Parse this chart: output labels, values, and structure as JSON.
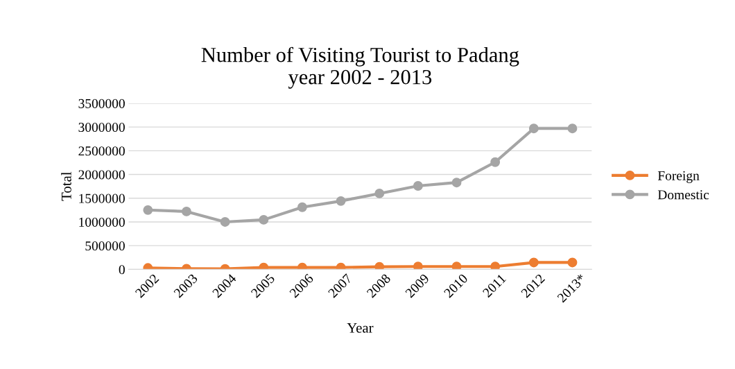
{
  "chart_data": {
    "type": "line",
    "title": "Number of Visiting Tourist to Padang\nyear 2002 - 2013",
    "xlabel": "Year",
    "ylabel": "Total",
    "categories": [
      "2002",
      "2003",
      "2004",
      "2005",
      "2006",
      "2007",
      "2008",
      "2009",
      "2010",
      "2011",
      "2012",
      "2013*"
    ],
    "series": [
      {
        "name": "Foreign",
        "color": "#ed7d31",
        "values": [
          30000,
          15000,
          10000,
          40000,
          40000,
          40000,
          55000,
          60000,
          60000,
          60000,
          145000,
          145000
        ]
      },
      {
        "name": "Domestic",
        "color": "#a5a5a5",
        "values": [
          1250000,
          1220000,
          1000000,
          1045000,
          1310000,
          1440000,
          1600000,
          1760000,
          1830000,
          2260000,
          2970000,
          2970000
        ]
      }
    ],
    "ylim": [
      0,
      3500000
    ],
    "yticks": [
      0,
      500000,
      1000000,
      1500000,
      2000000,
      2500000,
      3000000,
      3500000
    ],
    "grid": "y",
    "legend": "right",
    "marker": "circle",
    "line_style": "solid"
  }
}
